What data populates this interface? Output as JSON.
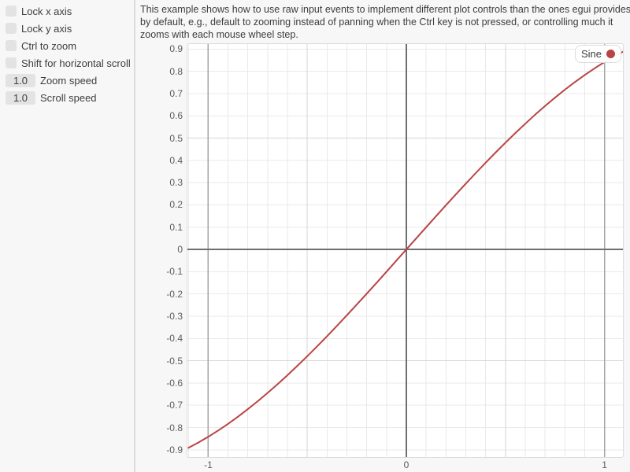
{
  "sidebar": {
    "checkboxes": [
      {
        "label": "Lock x axis",
        "checked": false
      },
      {
        "label": "Lock y axis",
        "checked": false
      },
      {
        "label": "Ctrl to zoom",
        "checked": false
      },
      {
        "label": "Shift for horizontal scroll",
        "checked": false
      }
    ],
    "drag_values": [
      {
        "value": "1.0",
        "label": "Zoom speed"
      },
      {
        "value": "1.0",
        "label": "Scroll speed"
      }
    ]
  },
  "description": "This example shows how to use raw input events to implement different plot controls than the ones egui provides by default, e.g., default to zooming instead of panning when the Ctrl key is not pressed, or controlling much it zooms with each mouse wheel step.",
  "chart_data": {
    "type": "line",
    "title": "",
    "xlabel": "",
    "ylabel": "",
    "xlim": [
      -1.109,
      1.097
    ],
    "ylim": [
      -0.936,
      0.926
    ],
    "grid": true,
    "legend_position": "top-right",
    "plot_bg": "#ffffff",
    "frame_border": "#dcdcdc",
    "grid_colors": {
      "minor": "#e9e9e9",
      "mid": "#d6d6d6",
      "major": "#a5a5a5",
      "axis": "#6f6f6f"
    },
    "tick_color": "#5c5c5c",
    "x_ticks": [
      [
        -1,
        "-1"
      ],
      [
        0,
        "0"
      ],
      [
        1,
        "1"
      ]
    ],
    "y_ticks": [
      [
        0.9,
        "0.9"
      ],
      [
        0.8,
        "0.8"
      ],
      [
        0.7,
        "0.7"
      ],
      [
        0.6,
        "0.6"
      ],
      [
        0.5,
        "0.5"
      ],
      [
        0.4,
        "0.4"
      ],
      [
        0.3,
        "0.3"
      ],
      [
        0.2,
        "0.2"
      ],
      [
        0.1,
        "0.1"
      ],
      [
        0,
        "0"
      ],
      [
        -0.1,
        "-0.1"
      ],
      [
        -0.2,
        "-0.2"
      ],
      [
        -0.3,
        "-0.3"
      ],
      [
        -0.4,
        "-0.4"
      ],
      [
        -0.5,
        "-0.5"
      ],
      [
        -0.6,
        "-0.6"
      ],
      [
        -0.7,
        "-0.7"
      ],
      [
        -0.8,
        "-0.8"
      ],
      [
        -0.9,
        "-0.9"
      ]
    ],
    "series": [
      {
        "name": "Sine",
        "color": "#b94444",
        "points": [
          [
            -1.1,
            -0.8912
          ],
          [
            -1.05,
            -0.8674
          ],
          [
            -1.0,
            -0.8415
          ],
          [
            -0.95,
            -0.8134
          ],
          [
            -0.9,
            -0.7833
          ],
          [
            -0.85,
            -0.7513
          ],
          [
            -0.8,
            -0.7174
          ],
          [
            -0.75,
            -0.6816
          ],
          [
            -0.7,
            -0.6442
          ],
          [
            -0.65,
            -0.6052
          ],
          [
            -0.6,
            -0.5646
          ],
          [
            -0.55,
            -0.5227
          ],
          [
            -0.5,
            -0.4794
          ],
          [
            -0.45,
            -0.435
          ],
          [
            -0.4,
            -0.3894
          ],
          [
            -0.35,
            -0.3429
          ],
          [
            -0.3,
            -0.2955
          ],
          [
            -0.25,
            -0.2474
          ],
          [
            -0.2,
            -0.1987
          ],
          [
            -0.15,
            -0.1494
          ],
          [
            -0.1,
            -0.0998
          ],
          [
            -0.05,
            -0.05
          ],
          [
            0,
            0
          ],
          [
            0.05,
            0.05
          ],
          [
            0.1,
            0.0998
          ],
          [
            0.15,
            0.1494
          ],
          [
            0.2,
            0.1987
          ],
          [
            0.25,
            0.2474
          ],
          [
            0.3,
            0.2955
          ],
          [
            0.35,
            0.3429
          ],
          [
            0.4,
            0.3894
          ],
          [
            0.45,
            0.435
          ],
          [
            0.5,
            0.4794
          ],
          [
            0.55,
            0.5227
          ],
          [
            0.6,
            0.5646
          ],
          [
            0.65,
            0.6052
          ],
          [
            0.7,
            0.6442
          ],
          [
            0.75,
            0.6816
          ],
          [
            0.8,
            0.7174
          ],
          [
            0.85,
            0.7513
          ],
          [
            0.9,
            0.7833
          ],
          [
            0.95,
            0.8134
          ],
          [
            1.0,
            0.8415
          ],
          [
            1.05,
            0.8674
          ],
          [
            1.1,
            0.8912
          ]
        ]
      }
    ]
  }
}
